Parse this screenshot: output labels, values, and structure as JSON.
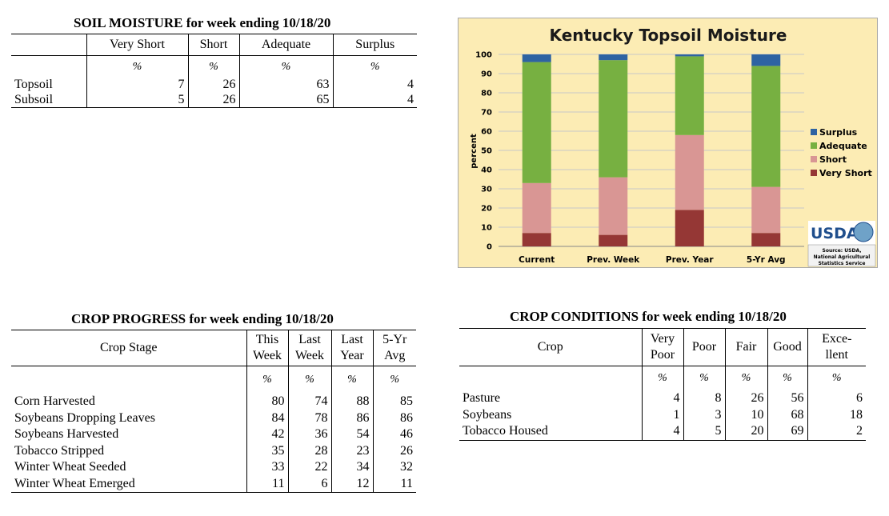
{
  "soil": {
    "title": "SOIL MOISTURE for week ending 10/18/20",
    "columns": [
      "Very Short",
      "Short",
      "Adequate",
      "Surplus"
    ],
    "unit": "%",
    "rows": [
      {
        "label": "Topsoil",
        "values": [
          "7",
          "26",
          "63",
          "4"
        ]
      },
      {
        "label": "Subsoil",
        "values": [
          "5",
          "26",
          "65",
          "4"
        ]
      }
    ]
  },
  "progress": {
    "title": "CROP PROGRESS for week ending 10/18/20",
    "stage_header": "Crop Stage",
    "columns": [
      [
        "This",
        "Week"
      ],
      [
        "Last",
        "Week"
      ],
      [
        "Last",
        "Year"
      ],
      [
        "5-Yr",
        "Avg"
      ]
    ],
    "unit": "%",
    "rows": [
      {
        "label": "Corn Harvested",
        "values": [
          "80",
          "74",
          "88",
          "85"
        ]
      },
      {
        "label": "Soybeans Dropping Leaves",
        "values": [
          "84",
          "78",
          "86",
          "86"
        ]
      },
      {
        "label": "Soybeans Harvested",
        "values": [
          "42",
          "36",
          "54",
          "46"
        ]
      },
      {
        "label": "Tobacco Stripped",
        "values": [
          "35",
          "28",
          "23",
          "26"
        ]
      },
      {
        "label": "Winter Wheat Seeded",
        "values": [
          "33",
          "22",
          "34",
          "32"
        ]
      },
      {
        "label": "Winter Wheat Emerged",
        "values": [
          "11",
          "6",
          "12",
          "11"
        ]
      }
    ]
  },
  "conditions": {
    "title": "CROP CONDITIONS for week ending 10/18/20",
    "crop_header": "Crop",
    "columns": [
      [
        "Very",
        "Poor"
      ],
      [
        "Poor"
      ],
      [
        "Fair"
      ],
      [
        "Good"
      ],
      [
        "Exce-",
        "llent"
      ]
    ],
    "unit": "%",
    "rows": [
      {
        "label": "Pasture",
        "values": [
          "4",
          "8",
          "26",
          "56",
          "6"
        ]
      },
      {
        "label": "Soybeans",
        "values": [
          "1",
          "3",
          "10",
          "68",
          "18"
        ]
      },
      {
        "label": "Tobacco Housed",
        "values": [
          "4",
          "5",
          "20",
          "69",
          "2"
        ]
      }
    ]
  },
  "chart_data": {
    "type": "bar",
    "stacked": true,
    "title": "Kentucky Topsoil Moisture",
    "ylabel": "percent",
    "xlabel": "",
    "ylim": [
      0,
      100
    ],
    "yticks": [
      0,
      10,
      20,
      30,
      40,
      50,
      60,
      70,
      80,
      90,
      100
    ],
    "categories": [
      "Current",
      "Prev. Week",
      "Prev. Year",
      "5-Yr Avg"
    ],
    "series": [
      {
        "name": "Very Short",
        "color": "#953735",
        "values": [
          7,
          6,
          19,
          7
        ]
      },
      {
        "name": "Short",
        "color": "#d99694",
        "values": [
          26,
          30,
          39,
          24
        ]
      },
      {
        "name": "Adequate",
        "color": "#77b041",
        "values": [
          63,
          61,
          41,
          63
        ]
      },
      {
        "name": "Surplus",
        "color": "#2e63a2",
        "values": [
          4,
          3,
          1,
          6
        ]
      }
    ],
    "legend_position": "right",
    "logo_text": "USDA",
    "source_lines": [
      "Source: USDA,",
      "National Agricultural",
      "Statistics Service"
    ],
    "grid": true
  }
}
